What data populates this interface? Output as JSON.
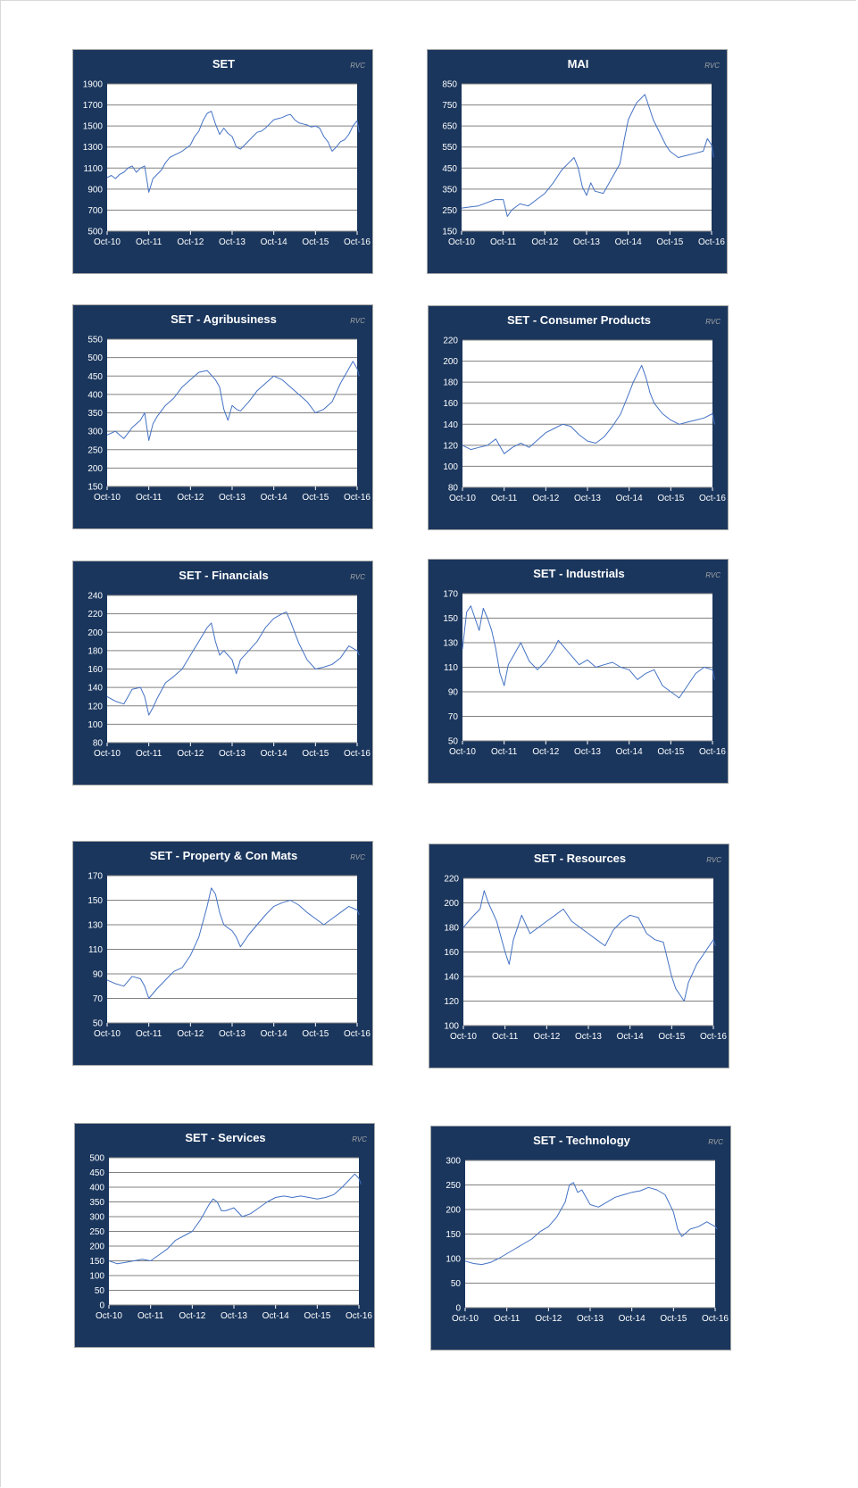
{
  "chart_data": [
    {
      "type": "line",
      "title": "SET",
      "watermark": "RVC",
      "ylim": [
        500,
        1900
      ],
      "yticks": [
        500,
        700,
        900,
        1100,
        1300,
        1500,
        1700,
        1900
      ],
      "xticks": [
        "Oct-10",
        "Oct-11",
        "Oct-12",
        "Oct-13",
        "Oct-14",
        "Oct-15",
        "Oct-16"
      ],
      "grid": true,
      "line_color": "#4472c4",
      "series": [
        {
          "x": [
            0,
            0.1,
            0.2,
            0.3,
            0.4,
            0.5,
            0.6,
            0.7,
            0.8,
            0.9,
            1,
            1.1,
            1.2,
            1.3,
            1.4,
            1.5,
            1.6,
            1.7,
            1.8,
            1.9,
            2,
            2.1,
            2.2,
            2.3,
            2.4,
            2.5,
            2.6,
            2.7,
            2.8,
            2.9,
            3,
            3.1,
            3.2,
            3.3,
            3.4,
            3.5,
            3.6,
            3.7,
            3.8,
            3.9,
            4,
            4.1,
            4.2,
            4.3,
            4.4,
            4.5,
            4.6,
            4.7,
            4.8,
            4.9,
            5,
            5.1,
            5.2,
            5.3,
            5.4,
            5.5,
            5.6,
            5.7,
            5.8,
            5.9,
            6,
            6.05
          ],
          "values": [
            1010,
            1030,
            1000,
            1040,
            1060,
            1100,
            1120,
            1060,
            1100,
            1120,
            870,
            1000,
            1040,
            1080,
            1150,
            1200,
            1220,
            1240,
            1260,
            1290,
            1320,
            1400,
            1450,
            1550,
            1620,
            1640,
            1520,
            1420,
            1480,
            1430,
            1400,
            1300,
            1280,
            1320,
            1360,
            1400,
            1440,
            1450,
            1480,
            1520,
            1560,
            1570,
            1580,
            1600,
            1610,
            1560,
            1530,
            1520,
            1510,
            1490,
            1500,
            1480,
            1400,
            1350,
            1260,
            1300,
            1350,
            1370,
            1420,
            1500,
            1550,
            1440
          ]
        }
      ]
    },
    {
      "type": "line",
      "title": "MAI",
      "watermark": "RVC",
      "ylim": [
        150,
        850
      ],
      "yticks": [
        150,
        250,
        350,
        450,
        550,
        650,
        750,
        850
      ],
      "xticks": [
        "Oct-10",
        "Oct-11",
        "Oct-12",
        "Oct-13",
        "Oct-14",
        "Oct-15",
        "Oct-16"
      ],
      "grid": true,
      "line_color": "#4472c4",
      "series": [
        {
          "x": [
            0,
            0.2,
            0.4,
            0.6,
            0.8,
            1,
            1.1,
            1.2,
            1.4,
            1.6,
            1.8,
            2,
            2.2,
            2.4,
            2.6,
            2.7,
            2.8,
            2.9,
            3,
            3.1,
            3.2,
            3.4,
            3.6,
            3.8,
            3.9,
            4,
            4.1,
            4.2,
            4.3,
            4.4,
            4.5,
            4.6,
            4.7,
            4.8,
            4.9,
            5,
            5.2,
            5.4,
            5.6,
            5.8,
            5.9,
            6,
            6.05
          ],
          "values": [
            260,
            265,
            270,
            285,
            300,
            300,
            220,
            250,
            280,
            270,
            300,
            330,
            380,
            440,
            480,
            500,
            450,
            360,
            320,
            380,
            340,
            330,
            400,
            470,
            580,
            680,
            720,
            760,
            780,
            800,
            740,
            680,
            640,
            600,
            560,
            530,
            500,
            510,
            520,
            530,
            590,
            560,
            500
          ]
        }
      ]
    },
    {
      "type": "line",
      "title": "SET - Agribusiness",
      "watermark": "RVC",
      "ylim": [
        150,
        550
      ],
      "yticks": [
        150,
        200,
        250,
        300,
        350,
        400,
        450,
        500,
        550
      ],
      "xticks": [
        "Oct-10",
        "Oct-11",
        "Oct-12",
        "Oct-13",
        "Oct-14",
        "Oct-15",
        "Oct-16"
      ],
      "grid": true,
      "line_color": "#4472c4",
      "series": [
        {
          "x": [
            0,
            0.2,
            0.4,
            0.6,
            0.8,
            0.9,
            1,
            1.1,
            1.2,
            1.4,
            1.6,
            1.8,
            2,
            2.2,
            2.4,
            2.6,
            2.7,
            2.8,
            2.9,
            3,
            3.1,
            3.2,
            3.4,
            3.6,
            3.8,
            4,
            4.2,
            4.4,
            4.6,
            4.8,
            5,
            5.2,
            5.4,
            5.6,
            5.8,
            5.9,
            6,
            6.05
          ],
          "values": [
            290,
            300,
            280,
            310,
            330,
            350,
            275,
            320,
            340,
            370,
            390,
            420,
            440,
            460,
            465,
            440,
            420,
            360,
            330,
            370,
            360,
            355,
            380,
            410,
            430,
            450,
            440,
            420,
            400,
            380,
            350,
            360,
            380,
            430,
            470,
            490,
            470,
            450
          ]
        }
      ]
    },
    {
      "type": "line",
      "title": "SET - Consumer Products",
      "watermark": "RVC",
      "ylim": [
        80,
        220
      ],
      "yticks": [
        80,
        100,
        120,
        140,
        160,
        180,
        200,
        220
      ],
      "xticks": [
        "Oct-10",
        "Oct-11",
        "Oct-12",
        "Oct-13",
        "Oct-14",
        "Oct-15",
        "Oct-16"
      ],
      "grid": true,
      "line_color": "#4472c4",
      "series": [
        {
          "x": [
            0,
            0.2,
            0.4,
            0.6,
            0.8,
            1,
            1.2,
            1.4,
            1.6,
            1.8,
            2,
            2.2,
            2.4,
            2.6,
            2.8,
            3,
            3.2,
            3.4,
            3.6,
            3.8,
            4,
            4.1,
            4.2,
            4.3,
            4.4,
            4.5,
            4.6,
            4.8,
            5,
            5.2,
            5.4,
            5.6,
            5.8,
            6,
            6.05
          ],
          "values": [
            120,
            116,
            118,
            120,
            126,
            112,
            118,
            122,
            118,
            125,
            132,
            136,
            140,
            138,
            130,
            124,
            122,
            128,
            138,
            150,
            170,
            180,
            188,
            196,
            185,
            170,
            160,
            150,
            144,
            140,
            142,
            144,
            146,
            150,
            140
          ]
        }
      ]
    },
    {
      "type": "line",
      "title": "SET - Financials",
      "watermark": "RVC",
      "ylim": [
        80,
        240
      ],
      "yticks": [
        80,
        100,
        120,
        140,
        160,
        180,
        200,
        220,
        240
      ],
      "xticks": [
        "Oct-10",
        "Oct-11",
        "Oct-12",
        "Oct-13",
        "Oct-14",
        "Oct-15",
        "Oct-16"
      ],
      "grid": true,
      "line_color": "#4472c4",
      "series": [
        {
          "x": [
            0,
            0.2,
            0.4,
            0.6,
            0.8,
            0.9,
            1,
            1.1,
            1.2,
            1.4,
            1.6,
            1.8,
            2,
            2.2,
            2.4,
            2.5,
            2.6,
            2.7,
            2.8,
            3,
            3.1,
            3.2,
            3.4,
            3.6,
            3.8,
            4,
            4.2,
            4.3,
            4.4,
            4.5,
            4.6,
            4.8,
            5,
            5.2,
            5.4,
            5.6,
            5.8,
            6,
            6.05
          ],
          "values": [
            130,
            125,
            122,
            138,
            140,
            130,
            110,
            118,
            128,
            145,
            152,
            160,
            175,
            190,
            205,
            210,
            190,
            175,
            180,
            170,
            155,
            170,
            180,
            190,
            205,
            215,
            220,
            222,
            212,
            200,
            188,
            170,
            160,
            162,
            165,
            172,
            185,
            180,
            175
          ]
        }
      ]
    },
    {
      "type": "line",
      "title": "SET - Industrials",
      "watermark": "RVC",
      "ylim": [
        50,
        170
      ],
      "yticks": [
        50,
        70,
        90,
        110,
        130,
        150,
        170
      ],
      "xticks": [
        "Oct-10",
        "Oct-11",
        "Oct-12",
        "Oct-13",
        "Oct-14",
        "Oct-15",
        "Oct-16"
      ],
      "grid": true,
      "line_color": "#4472c4",
      "series": [
        {
          "x": [
            0,
            0.1,
            0.2,
            0.3,
            0.4,
            0.5,
            0.6,
            0.7,
            0.8,
            0.9,
            1,
            1.1,
            1.2,
            1.4,
            1.6,
            1.8,
            2,
            2.2,
            2.3,
            2.4,
            2.6,
            2.8,
            3,
            3.2,
            3.4,
            3.6,
            3.8,
            4,
            4.2,
            4.4,
            4.6,
            4.8,
            5,
            5.2,
            5.4,
            5.6,
            5.8,
            6,
            6.05
          ],
          "values": [
            125,
            155,
            160,
            150,
            140,
            158,
            150,
            140,
            125,
            105,
            95,
            112,
            118,
            130,
            115,
            108,
            115,
            125,
            132,
            128,
            120,
            112,
            116,
            110,
            112,
            114,
            110,
            108,
            100,
            105,
            108,
            95,
            90,
            85,
            95,
            105,
            110,
            108,
            100
          ]
        }
      ]
    },
    {
      "type": "line",
      "title": "SET - Property & Con Mats",
      "watermark": "RVC",
      "ylim": [
        50,
        170
      ],
      "yticks": [
        50,
        70,
        90,
        110,
        130,
        150,
        170
      ],
      "xticks": [
        "Oct-10",
        "Oct-11",
        "Oct-12",
        "Oct-13",
        "Oct-14",
        "Oct-15",
        "Oct-16"
      ],
      "grid": true,
      "line_color": "#4472c4",
      "series": [
        {
          "x": [
            0,
            0.2,
            0.4,
            0.6,
            0.8,
            0.9,
            1,
            1.2,
            1.4,
            1.6,
            1.8,
            2,
            2.2,
            2.4,
            2.5,
            2.6,
            2.7,
            2.8,
            3,
            3.1,
            3.2,
            3.4,
            3.6,
            3.8,
            4,
            4.2,
            4.4,
            4.6,
            4.8,
            5,
            5.2,
            5.4,
            5.6,
            5.8,
            6,
            6.05
          ],
          "values": [
            85,
            82,
            80,
            88,
            86,
            80,
            70,
            78,
            85,
            92,
            95,
            105,
            120,
            145,
            160,
            155,
            140,
            130,
            125,
            120,
            112,
            122,
            130,
            138,
            145,
            148,
            150,
            146,
            140,
            135,
            130,
            135,
            140,
            145,
            142,
            138
          ]
        }
      ]
    },
    {
      "type": "line",
      "title": "SET - Resources",
      "watermark": "RVC",
      "ylim": [
        100,
        220
      ],
      "yticks": [
        100,
        120,
        140,
        160,
        180,
        200,
        220
      ],
      "xticks": [
        "Oct-10",
        "Oct-11",
        "Oct-12",
        "Oct-13",
        "Oct-14",
        "Oct-15",
        "Oct-16"
      ],
      "grid": true,
      "line_color": "#4472c4",
      "series": [
        {
          "x": [
            0,
            0.2,
            0.4,
            0.5,
            0.6,
            0.8,
            1,
            1.1,
            1.2,
            1.4,
            1.6,
            1.8,
            2,
            2.2,
            2.4,
            2.6,
            2.8,
            3,
            3.2,
            3.4,
            3.6,
            3.8,
            4,
            4.2,
            4.4,
            4.6,
            4.8,
            5,
            5.1,
            5.2,
            5.3,
            5.4,
            5.6,
            5.8,
            6,
            6.05
          ],
          "values": [
            180,
            188,
            195,
            210,
            200,
            185,
            160,
            150,
            170,
            190,
            175,
            180,
            185,
            190,
            195,
            185,
            180,
            175,
            170,
            165,
            178,
            185,
            190,
            188,
            175,
            170,
            168,
            140,
            130,
            125,
            120,
            135,
            150,
            160,
            170,
            165
          ]
        }
      ]
    },
    {
      "type": "line",
      "title": "SET - Services",
      "watermark": "RVC",
      "ylim": [
        0,
        500
      ],
      "yticks": [
        0,
        50,
        100,
        150,
        200,
        250,
        300,
        350,
        400,
        450,
        500
      ],
      "xticks": [
        "Oct-10",
        "Oct-11",
        "Oct-12",
        "Oct-13",
        "Oct-14",
        "Oct-15",
        "Oct-16"
      ],
      "grid": true,
      "line_color": "#4472c4",
      "series": [
        {
          "x": [
            0,
            0.2,
            0.4,
            0.6,
            0.8,
            1,
            1.2,
            1.4,
            1.6,
            1.8,
            2,
            2.2,
            2.4,
            2.5,
            2.6,
            2.7,
            2.8,
            3,
            3.2,
            3.4,
            3.6,
            3.8,
            4,
            4.2,
            4.4,
            4.6,
            4.8,
            5,
            5.2,
            5.4,
            5.6,
            5.8,
            5.9,
            6,
            6.05
          ],
          "values": [
            150,
            140,
            145,
            150,
            155,
            150,
            170,
            190,
            220,
            235,
            250,
            290,
            340,
            360,
            350,
            320,
            320,
            330,
            300,
            310,
            330,
            350,
            365,
            370,
            365,
            370,
            365,
            360,
            365,
            375,
            400,
            430,
            445,
            430,
            410
          ]
        }
      ]
    },
    {
      "type": "line",
      "title": "SET - Technology",
      "watermark": "RVC",
      "ylim": [
        0,
        300
      ],
      "yticks": [
        0,
        50,
        100,
        150,
        200,
        250,
        300
      ],
      "xticks": [
        "Oct-10",
        "Oct-11",
        "Oct-12",
        "Oct-13",
        "Oct-14",
        "Oct-15",
        "Oct-16"
      ],
      "grid": true,
      "line_color": "#4472c4",
      "series": [
        {
          "x": [
            0,
            0.2,
            0.4,
            0.6,
            0.8,
            1,
            1.2,
            1.4,
            1.6,
            1.8,
            2,
            2.2,
            2.4,
            2.5,
            2.6,
            2.7,
            2.8,
            3,
            3.2,
            3.4,
            3.6,
            3.8,
            4,
            4.2,
            4.4,
            4.6,
            4.8,
            5,
            5.1,
            5.2,
            5.4,
            5.6,
            5.8,
            6,
            6.05
          ],
          "values": [
            95,
            90,
            88,
            92,
            100,
            110,
            120,
            130,
            140,
            155,
            165,
            185,
            215,
            250,
            255,
            235,
            240,
            210,
            205,
            215,
            225,
            230,
            235,
            238,
            245,
            240,
            230,
            195,
            160,
            145,
            160,
            165,
            175,
            165,
            160
          ]
        }
      ]
    }
  ]
}
